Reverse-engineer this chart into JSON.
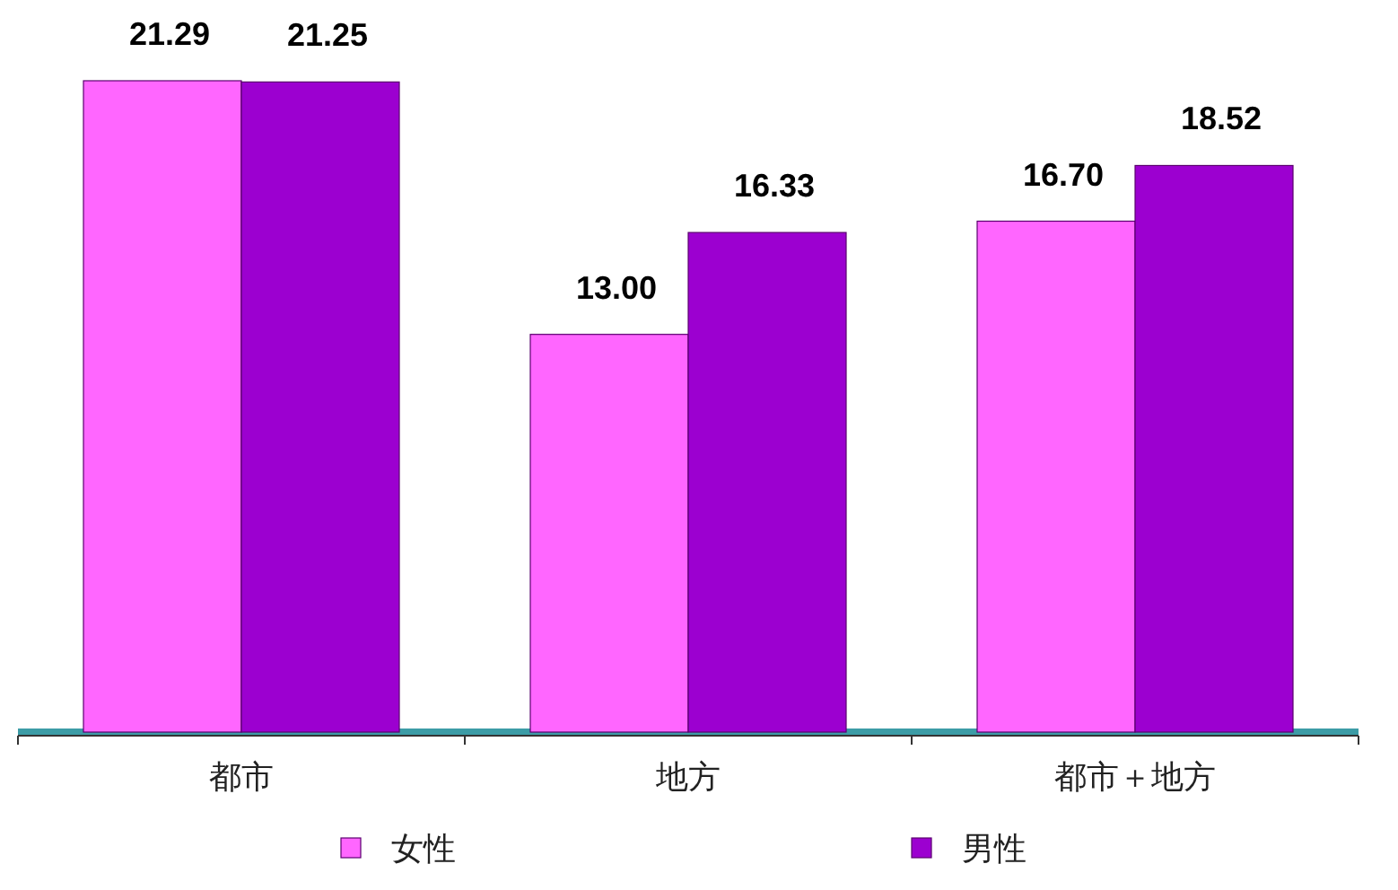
{
  "chart_data": {
    "type": "bar",
    "categories": [
      "都市",
      "地方",
      "都市＋地方"
    ],
    "series": [
      {
        "name": "女性",
        "color": "#ff66ff",
        "values": [
          21.29,
          13.0,
          16.7
        ],
        "value_labels": [
          "21.29",
          "13.00",
          "16.70"
        ]
      },
      {
        "name": "男性",
        "color": "#9c00d0",
        "values": [
          21.25,
          16.33,
          18.52
        ],
        "value_labels": [
          "21.25",
          "16.33",
          "18.52"
        ]
      }
    ],
    "legend": "bottom"
  }
}
